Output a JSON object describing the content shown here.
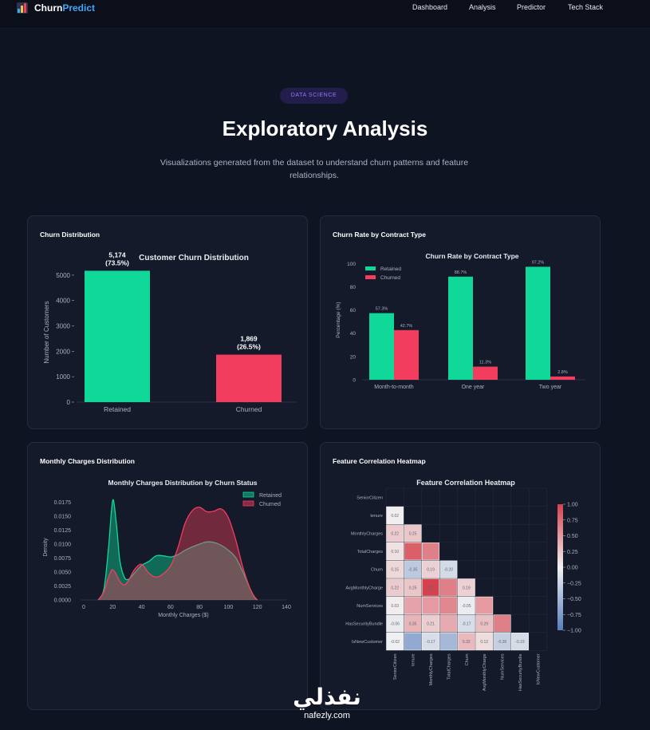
{
  "brand": {
    "name_part1": "Churn",
    "name_part2": "Predict"
  },
  "nav": {
    "links": [
      "Dashboard",
      "Analysis",
      "Predictor",
      "Tech Stack"
    ]
  },
  "hero": {
    "badge": "DATA SCIENCE",
    "title": "Exploratory Analysis",
    "subtitle": "Visualizations generated from the dataset to understand churn patterns and feature relationships."
  },
  "colors": {
    "retained": "#0fd898",
    "churned": "#f23d5e"
  },
  "cards": [
    {
      "title": "Churn Distribution"
    },
    {
      "title": "Churn Rate by Contract Type"
    },
    {
      "title": "Monthly Charges Distribution"
    },
    {
      "title": "Feature Correlation Heatmap"
    }
  ],
  "chart_data": [
    {
      "type": "bar",
      "title": "Customer Churn Distribution",
      "ylabel": "Number of Customers",
      "xlabel": "",
      "categories": [
        "Retained",
        "Churned"
      ],
      "values": [
        5174,
        1869
      ],
      "bar_labels": [
        [
          "5,174",
          "(73.5%)"
        ],
        [
          "1,869",
          "(26.5%)"
        ]
      ],
      "yticks": [
        0,
        1000,
        2000,
        3000,
        4000,
        5000
      ],
      "ylim": [
        0,
        5500
      ]
    },
    {
      "type": "bar",
      "title": "Churn Rate by Contract Type",
      "ylabel": "Percentage (%)",
      "categories": [
        "Month-to-month",
        "One year",
        "Two year"
      ],
      "series": [
        {
          "name": "Retained",
          "values": [
            57.3,
            88.7,
            97.2
          ]
        },
        {
          "name": "Churned",
          "values": [
            42.7,
            11.3,
            2.8
          ]
        }
      ],
      "value_labels": [
        [
          "57.3%",
          "88.7%",
          "97.2%"
        ],
        [
          "42.7%",
          "11.3%",
          "2.8%"
        ]
      ],
      "yticks": [
        0,
        20,
        40,
        60,
        80,
        100
      ],
      "ylim": [
        0,
        105
      ],
      "legend": "top-left"
    },
    {
      "type": "area",
      "title": "Monthly Charges Distribution by Churn Status",
      "xlabel": "Monthly Charges ($)",
      "ylabel": "Density",
      "xticks": [
        0,
        20,
        40,
        60,
        80,
        100,
        120,
        140
      ],
      "yticks": [
        "0.0000",
        "0.0025",
        "0.0050",
        "0.0075",
        "0.0100",
        "0.0125",
        "0.0150",
        "0.0175"
      ],
      "ylim": [
        0,
        0.019
      ],
      "xlim": [
        0,
        140
      ],
      "series": [
        {
          "name": "Retained",
          "x": [
            10,
            14,
            17,
            19,
            20,
            21,
            23,
            25,
            28,
            31,
            35,
            40,
            45,
            50,
            55,
            60,
            65,
            70,
            75,
            80,
            85,
            90,
            95,
            100,
            105,
            110,
            115,
            118,
            120
          ],
          "y": [
            0,
            0.002,
            0.009,
            0.0155,
            0.0178,
            0.0172,
            0.0125,
            0.007,
            0.0041,
            0.0037,
            0.0048,
            0.0062,
            0.0069,
            0.0079,
            0.0079,
            0.0077,
            0.0081,
            0.0089,
            0.0095,
            0.01,
            0.0104,
            0.0103,
            0.0098,
            0.0089,
            0.0076,
            0.005,
            0.002,
            0.0005,
            0
          ]
        },
        {
          "name": "Churned",
          "x": [
            10,
            14,
            17,
            19,
            20,
            22,
            25,
            28,
            31,
            35,
            40,
            45,
            50,
            55,
            60,
            65,
            70,
            75,
            80,
            85,
            90,
            95,
            100,
            105,
            110,
            115,
            118,
            120
          ],
          "y": [
            0,
            0.0015,
            0.004,
            0.0052,
            0.0054,
            0.0048,
            0.0033,
            0.0027,
            0.0035,
            0.0054,
            0.0064,
            0.0048,
            0.0041,
            0.0047,
            0.0061,
            0.0093,
            0.0137,
            0.016,
            0.0166,
            0.0158,
            0.0159,
            0.0163,
            0.0147,
            0.0108,
            0.0058,
            0.002,
            0.0006,
            0
          ]
        }
      ],
      "legend": "top-right"
    },
    {
      "type": "heatmap",
      "title": "Feature Correlation Heatmap",
      "labels": [
        "SeniorCitizen",
        "tenure",
        "MonthlyCharges",
        "TotalCharges",
        "Churn",
        "AvgMonthlyCharge",
        "NumServices",
        "HasSecurityBundle",
        "IsNewCustomer"
      ],
      "cells": [
        {
          "r": 1,
          "c": 0,
          "v": 0.02,
          "t": "0.02"
        },
        {
          "r": 2,
          "c": 0,
          "v": 0.22,
          "t": "0.22"
        },
        {
          "r": 2,
          "c": 1,
          "v": 0.25,
          "t": "0.25"
        },
        {
          "r": 3,
          "c": 0,
          "v": 0.1,
          "t": "0.10"
        },
        {
          "r": 3,
          "c": 1,
          "v": 0.83,
          "t": ""
        },
        {
          "r": 3,
          "c": 2,
          "v": 0.65,
          "t": ""
        },
        {
          "r": 4,
          "c": 0,
          "v": 0.15,
          "t": "0.15"
        },
        {
          "r": 4,
          "c": 1,
          "v": -0.35,
          "t": "-0.35"
        },
        {
          "r": 4,
          "c": 2,
          "v": 0.19,
          "t": "0.19"
        },
        {
          "r": 4,
          "c": 3,
          "v": -0.2,
          "t": "-0.20"
        },
        {
          "r": 5,
          "c": 0,
          "v": 0.22,
          "t": "0.22"
        },
        {
          "r": 5,
          "c": 1,
          "v": 0.25,
          "t": "0.25"
        },
        {
          "r": 5,
          "c": 2,
          "v": 1.0,
          "t": "1.00"
        },
        {
          "r": 5,
          "c": 3,
          "v": 0.65,
          "t": ""
        },
        {
          "r": 5,
          "c": 4,
          "v": 0.19,
          "t": "0.19"
        },
        {
          "r": 6,
          "c": 0,
          "v": 0.03,
          "t": "0.03"
        },
        {
          "r": 6,
          "c": 1,
          "v": 0.45,
          "t": ""
        },
        {
          "r": 6,
          "c": 2,
          "v": 0.5,
          "t": ""
        },
        {
          "r": 6,
          "c": 3,
          "v": 0.6,
          "t": ""
        },
        {
          "r": 6,
          "c": 4,
          "v": -0.05,
          "t": "-0.05"
        },
        {
          "r": 6,
          "c": 5,
          "v": 0.5,
          "t": ""
        },
        {
          "r": 7,
          "c": 0,
          "v": -0.06,
          "t": "-0.06"
        },
        {
          "r": 7,
          "c": 1,
          "v": 0.35,
          "t": "0.35"
        },
        {
          "r": 7,
          "c": 2,
          "v": 0.21,
          "t": "0.21"
        },
        {
          "r": 7,
          "c": 3,
          "v": 0.4,
          "t": ""
        },
        {
          "r": 7,
          "c": 4,
          "v": -0.17,
          "t": "-0.17"
        },
        {
          "r": 7,
          "c": 5,
          "v": 0.29,
          "t": "0.29"
        },
        {
          "r": 7,
          "c": 6,
          "v": 0.65,
          "t": ""
        },
        {
          "r": 8,
          "c": 0,
          "v": -0.02,
          "t": "-0.02"
        },
        {
          "r": 8,
          "c": 1,
          "v": -0.62,
          "t": ""
        },
        {
          "r": 8,
          "c": 2,
          "v": -0.17,
          "t": "-0.17"
        },
        {
          "r": 8,
          "c": 3,
          "v": -0.5,
          "t": ""
        },
        {
          "r": 8,
          "c": 4,
          "v": 0.32,
          "t": "0.32"
        },
        {
          "r": 8,
          "c": 5,
          "v": 0.12,
          "t": "0.12"
        },
        {
          "r": 8,
          "c": 6,
          "v": -0.3,
          "t": "-0.30"
        },
        {
          "r": 8,
          "c": 7,
          "v": -0.19,
          "t": "-0.19"
        }
      ],
      "colorbar_ticks": [
        "1.00",
        "0.75",
        "0.50",
        "0.25",
        "0.00",
        "−0.25",
        "−0.50",
        "−0.75",
        "−1.00"
      ],
      "colorbar_values": [
        1.0,
        0.75,
        0.5,
        0.25,
        0,
        -0.25,
        -0.5,
        -0.75,
        -1.0
      ]
    }
  ],
  "watermark": {
    "arabic": "نفذلي",
    "latin": "nafezly.com"
  }
}
